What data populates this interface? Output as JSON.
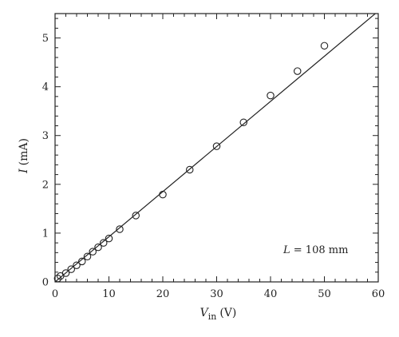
{
  "chart_data": {
    "type": "scatter",
    "title": "",
    "xlabel": {
      "symbol": "V",
      "subscript": "in",
      "unit": "(V)"
    },
    "ylabel": {
      "symbol": "I",
      "unit": "(mA)"
    },
    "xlim": [
      0,
      60
    ],
    "ylim": [
      0,
      5.5
    ],
    "xticks": [
      0,
      10,
      20,
      30,
      40,
      50,
      60
    ],
    "yticks": [
      0,
      1,
      2,
      3,
      4,
      5
    ],
    "grid": false,
    "series": [
      {
        "marker": "open-circle",
        "x": [
          0.5,
          1,
          2,
          3,
          4,
          5,
          6,
          7,
          8,
          9,
          10,
          12,
          15,
          20,
          25,
          30,
          35,
          40,
          45,
          50
        ],
        "y": [
          0.07,
          0.12,
          0.18,
          0.26,
          0.34,
          0.42,
          0.52,
          0.62,
          0.71,
          0.8,
          0.89,
          1.08,
          1.36,
          1.79,
          2.3,
          2.78,
          3.27,
          3.82,
          4.32,
          4.84
        ]
      }
    ],
    "fit_line": {
      "x": [
        0,
        60
      ],
      "y": [
        0,
        5.55
      ]
    },
    "annotation": {
      "symbol": "L",
      "text": " = 108 mm",
      "position": "bottom-right"
    }
  }
}
